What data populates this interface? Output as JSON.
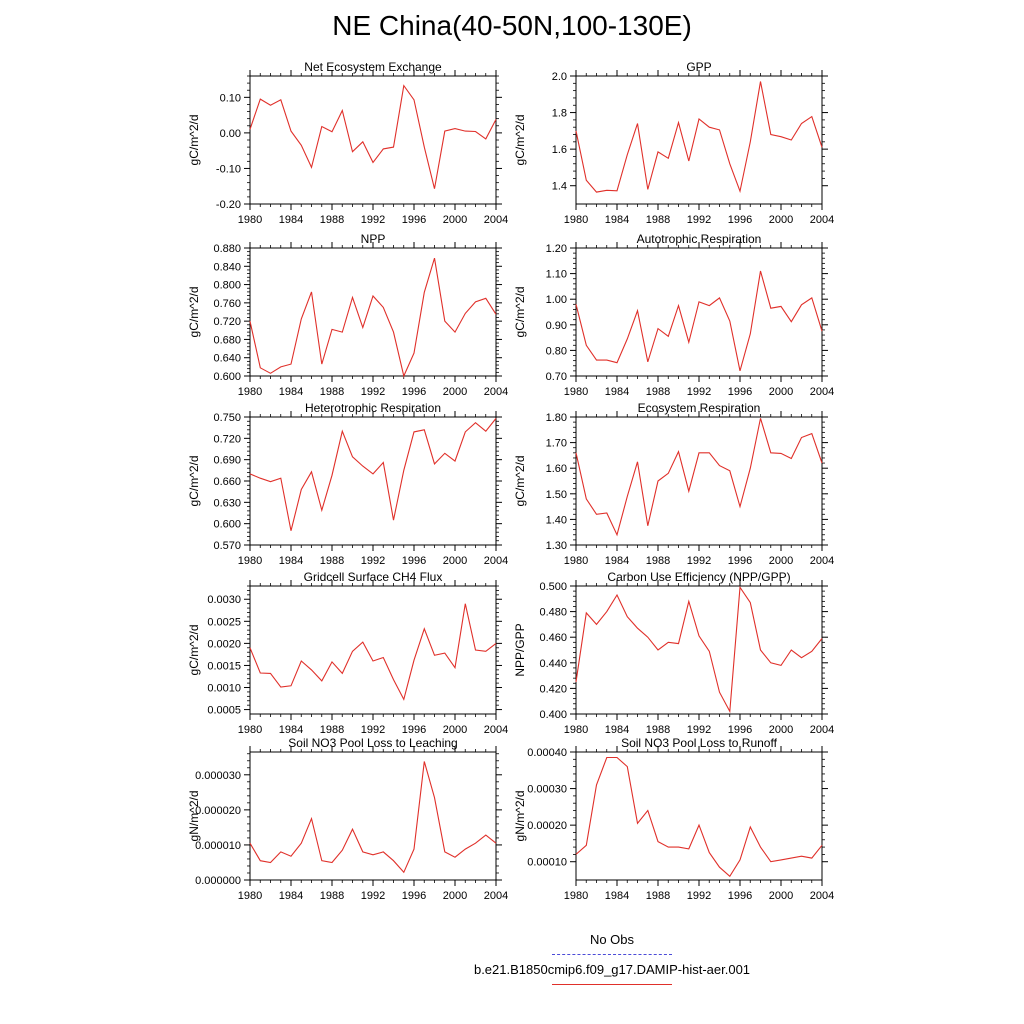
{
  "title": "NE China(40-50N,100-130E)",
  "legend": {
    "obs_label": "No Obs",
    "obs_color": "#4b4bd8",
    "model_label": "b.e21.B1850cmip6.f09_g17.DAMIP-hist-aer.001",
    "model_color": "#e0302a"
  },
  "chart_data": [
    {
      "type": "line",
      "title": "Net Ecosystem Exchange",
      "ylabel": "gC/m^2/d",
      "ylim": [
        -0.2,
        0.16
      ],
      "yticks": [
        -0.2,
        -0.1,
        0.0,
        0.1
      ],
      "ytick_labels": [
        "-0.20",
        "-0.10",
        "0.00",
        "0.10"
      ],
      "xlim": [
        1980,
        2004
      ],
      "xticks": [
        1980,
        1984,
        1988,
        1992,
        1996,
        2000,
        2004
      ],
      "x": [
        1980,
        1981,
        1982,
        1983,
        1984,
        1985,
        1986,
        1987,
        1988,
        1989,
        1990,
        1991,
        1992,
        1993,
        1994,
        1995,
        1996,
        1997,
        1998,
        1999,
        2000,
        2001,
        2002,
        2003,
        2004
      ],
      "series": [
        {
          "values": [
            0.01,
            0.095,
            0.078,
            0.093,
            0.005,
            -0.035,
            -0.097,
            0.018,
            0.003,
            0.063,
            -0.053,
            -0.025,
            -0.083,
            -0.045,
            -0.04,
            0.133,
            0.093,
            -0.04,
            -0.157,
            0.005,
            0.012,
            0.005,
            0.004,
            -0.017,
            0.038
          ]
        }
      ]
    },
    {
      "type": "line",
      "title": "GPP",
      "ylabel": "gC/m^2/d",
      "ylim": [
        1.3,
        2.0
      ],
      "yticks": [
        1.4,
        1.6,
        1.8,
        2.0
      ],
      "ytick_labels": [
        "1.4",
        "1.6",
        "1.8",
        "2.0"
      ],
      "xlim": [
        1980,
        2004
      ],
      "xticks": [
        1980,
        1984,
        1988,
        1992,
        1996,
        2000,
        2004
      ],
      "x": [
        1980,
        1981,
        1982,
        1983,
        1984,
        1985,
        1986,
        1987,
        1988,
        1989,
        1990,
        1991,
        1992,
        1993,
        1994,
        1995,
        1996,
        1997,
        1998,
        1999,
        2000,
        2001,
        2002,
        2003,
        2004
      ],
      "series": [
        {
          "values": [
            1.7,
            1.43,
            1.365,
            1.375,
            1.372,
            1.57,
            1.74,
            1.38,
            1.585,
            1.55,
            1.745,
            1.535,
            1.765,
            1.72,
            1.705,
            1.52,
            1.37,
            1.64,
            1.97,
            1.68,
            1.668,
            1.65,
            1.74,
            1.778,
            1.61
          ]
        }
      ]
    },
    {
      "type": "line",
      "title": "NPP",
      "ylabel": "gC/m^2/d",
      "ylim": [
        0.6,
        0.88
      ],
      "yticks": [
        0.6,
        0.64,
        0.68,
        0.72,
        0.76,
        0.8,
        0.84,
        0.88
      ],
      "ytick_labels": [
        "0.600",
        "0.640",
        "0.680",
        "0.720",
        "0.760",
        "0.800",
        "0.840",
        "0.880"
      ],
      "xlim": [
        1980,
        2004
      ],
      "xticks": [
        1980,
        1984,
        1988,
        1992,
        1996,
        2000,
        2004
      ],
      "x": [
        1980,
        1981,
        1982,
        1983,
        1984,
        1985,
        1986,
        1987,
        1988,
        1989,
        1990,
        1991,
        1992,
        1993,
        1994,
        1995,
        1996,
        1997,
        1998,
        1999,
        2000,
        2001,
        2002,
        2003,
        2004
      ],
      "series": [
        {
          "values": [
            0.72,
            0.618,
            0.606,
            0.62,
            0.626,
            0.725,
            0.784,
            0.626,
            0.702,
            0.696,
            0.772,
            0.706,
            0.775,
            0.75,
            0.696,
            0.6,
            0.65,
            0.783,
            0.858,
            0.72,
            0.696,
            0.737,
            0.762,
            0.77,
            0.735
          ]
        }
      ]
    },
    {
      "type": "line",
      "title": "Autotrophic Respiration",
      "ylabel": "gC/m^2/d",
      "ylim": [
        0.7,
        1.2
      ],
      "yticks": [
        0.7,
        0.8,
        0.9,
        1.0,
        1.1,
        1.2
      ],
      "ytick_labels": [
        "0.70",
        "0.80",
        "0.90",
        "1.00",
        "1.10",
        "1.20"
      ],
      "xlim": [
        1980,
        2004
      ],
      "xticks": [
        1980,
        1984,
        1988,
        1992,
        1996,
        2000,
        2004
      ],
      "x": [
        1980,
        1981,
        1982,
        1983,
        1984,
        1985,
        1986,
        1987,
        1988,
        1989,
        1990,
        1991,
        1992,
        1993,
        1994,
        1995,
        1996,
        1997,
        1998,
        1999,
        2000,
        2001,
        2002,
        2003,
        2004
      ],
      "series": [
        {
          "values": [
            0.98,
            0.82,
            0.762,
            0.762,
            0.752,
            0.845,
            0.955,
            0.755,
            0.885,
            0.855,
            0.975,
            0.832,
            0.99,
            0.975,
            1.005,
            0.915,
            0.72,
            0.865,
            1.11,
            0.965,
            0.972,
            0.912,
            0.978,
            1.005,
            0.875
          ]
        }
      ]
    },
    {
      "type": "line",
      "title": "Heterotrophic Respiration",
      "ylabel": "gC/m^2/d",
      "ylim": [
        0.57,
        0.75
      ],
      "yticks": [
        0.57,
        0.6,
        0.63,
        0.66,
        0.69,
        0.72,
        0.75
      ],
      "ytick_labels": [
        "0.570",
        "0.600",
        "0.630",
        "0.660",
        "0.690",
        "0.720",
        "0.750"
      ],
      "xlim": [
        1980,
        2004
      ],
      "xticks": [
        1980,
        1984,
        1988,
        1992,
        1996,
        2000,
        2004
      ],
      "x": [
        1980,
        1981,
        1982,
        1983,
        1984,
        1985,
        1986,
        1987,
        1988,
        1989,
        1990,
        1991,
        1992,
        1993,
        1994,
        1995,
        1996,
        1997,
        1998,
        1999,
        2000,
        2001,
        2002,
        2003,
        2004
      ],
      "series": [
        {
          "values": [
            0.67,
            0.664,
            0.659,
            0.664,
            0.59,
            0.648,
            0.673,
            0.619,
            0.668,
            0.73,
            0.694,
            0.681,
            0.67,
            0.686,
            0.605,
            0.675,
            0.729,
            0.732,
            0.684,
            0.699,
            0.688,
            0.729,
            0.742,
            0.73,
            0.748
          ]
        }
      ]
    },
    {
      "type": "line",
      "title": "Ecosystem Respiration",
      "ylabel": "gC/m^2/d",
      "ylim": [
        1.3,
        1.8
      ],
      "yticks": [
        1.3,
        1.4,
        1.5,
        1.6,
        1.7,
        1.8
      ],
      "ytick_labels": [
        "1.30",
        "1.40",
        "1.50",
        "1.60",
        "1.70",
        "1.80"
      ],
      "xlim": [
        1980,
        2004
      ],
      "xticks": [
        1980,
        1984,
        1988,
        1992,
        1996,
        2000,
        2004
      ],
      "x": [
        1980,
        1981,
        1982,
        1983,
        1984,
        1985,
        1986,
        1987,
        1988,
        1989,
        1990,
        1991,
        1992,
        1993,
        1994,
        1995,
        1996,
        1997,
        1998,
        1999,
        2000,
        2001,
        2002,
        2003,
        2004
      ],
      "series": [
        {
          "values": [
            1.66,
            1.48,
            1.42,
            1.425,
            1.34,
            1.49,
            1.625,
            1.375,
            1.55,
            1.58,
            1.665,
            1.51,
            1.66,
            1.66,
            1.61,
            1.59,
            1.45,
            1.6,
            1.795,
            1.66,
            1.658,
            1.638,
            1.72,
            1.735,
            1.62
          ]
        }
      ]
    },
    {
      "type": "line",
      "title": "Gridcell Surface CH4 Flux",
      "ylabel": "gC/m^2/d",
      "ylim": [
        0.0004,
        0.0033
      ],
      "yticks": [
        0.0005,
        0.001,
        0.0015,
        0.002,
        0.0025,
        0.003
      ],
      "ytick_labels": [
        "0.0005",
        "0.0010",
        "0.0015",
        "0.0020",
        "0.0025",
        "0.0030"
      ],
      "xlim": [
        1980,
        2004
      ],
      "xticks": [
        1980,
        1984,
        1988,
        1992,
        1996,
        2000,
        2004
      ],
      "x": [
        1980,
        1981,
        1982,
        1983,
        1984,
        1985,
        1986,
        1987,
        1988,
        1989,
        1990,
        1991,
        1992,
        1993,
        1994,
        1995,
        1996,
        1997,
        1998,
        1999,
        2000,
        2001,
        2002,
        2003,
        2004
      ],
      "series": [
        {
          "values": [
            0.0019,
            0.00133,
            0.00132,
            0.00101,
            0.00104,
            0.0016,
            0.0014,
            0.00115,
            0.00158,
            0.00132,
            0.00182,
            0.00203,
            0.0016,
            0.00168,
            0.00118,
            0.00073,
            0.00162,
            0.00233,
            0.00173,
            0.00178,
            0.00145,
            0.0029,
            0.00185,
            0.00182,
            0.002
          ]
        }
      ]
    },
    {
      "type": "line",
      "title": "Carbon Use Efficiency (NPP/GPP)",
      "ylabel": "NPP/GPP",
      "ylim": [
        0.4,
        0.5
      ],
      "yticks": [
        0.4,
        0.42,
        0.44,
        0.46,
        0.48,
        0.5
      ],
      "ytick_labels": [
        "0.400",
        "0.420",
        "0.440",
        "0.460",
        "0.480",
        "0.500"
      ],
      "xlim": [
        1980,
        2004
      ],
      "xticks": [
        1980,
        1984,
        1988,
        1992,
        1996,
        2000,
        2004
      ],
      "x": [
        1980,
        1981,
        1982,
        1983,
        1984,
        1985,
        1986,
        1987,
        1988,
        1989,
        1990,
        1991,
        1992,
        1993,
        1994,
        1995,
        1996,
        1997,
        1998,
        1999,
        2000,
        2001,
        2002,
        2003,
        2004
      ],
      "series": [
        {
          "values": [
            0.425,
            0.479,
            0.47,
            0.48,
            0.493,
            0.476,
            0.467,
            0.46,
            0.45,
            0.456,
            0.455,
            0.488,
            0.461,
            0.449,
            0.417,
            0.402,
            0.499,
            0.487,
            0.45,
            0.44,
            0.438,
            0.45,
            0.444,
            0.449,
            0.459
          ]
        }
      ]
    },
    {
      "type": "line",
      "title": "Soil NO3 Pool Loss to Leaching",
      "ylabel": "gN/m^2/d",
      "ylim": [
        0.0,
        3.65e-05
      ],
      "yticks": [
        0.0,
        1e-05,
        2e-05,
        3e-05
      ],
      "ytick_labels": [
        "0.000000",
        "0.000010",
        "0.000020",
        "0.000030"
      ],
      "xlim": [
        1980,
        2004
      ],
      "xticks": [
        1980,
        1984,
        1988,
        1992,
        1996,
        2000,
        2004
      ],
      "x": [
        1980,
        1981,
        1982,
        1983,
        1984,
        1985,
        1986,
        1987,
        1988,
        1989,
        1990,
        1991,
        1992,
        1993,
        1994,
        1995,
        1996,
        1997,
        1998,
        1999,
        2000,
        2001,
        2002,
        2003,
        2004
      ],
      "series": [
        {
          "values": [
            1.05e-05,
            5.5e-06,
            5e-06,
            8e-06,
            6.8e-06,
            1.05e-05,
            1.75e-05,
            5.5e-06,
            5e-06,
            8.5e-06,
            1.45e-05,
            8e-06,
            7.2e-06,
            8e-06,
            5.5e-06,
            2.2e-06,
            8.8e-06,
            3.38e-05,
            2.35e-05,
            8e-06,
            6.5e-06,
            8.8e-06,
            1.05e-05,
            1.28e-05,
            1.05e-05
          ]
        }
      ]
    },
    {
      "type": "line",
      "title": "Soil NO3 Pool Loss to Runoff",
      "ylabel": "gN/m^2/d",
      "ylim": [
        5e-05,
        0.0004
      ],
      "yticks": [
        0.0001,
        0.0002,
        0.0003,
        0.0004
      ],
      "ytick_labels": [
        "0.00010",
        "0.00020",
        "0.00030",
        "0.00040"
      ],
      "xlim": [
        1980,
        2004
      ],
      "xticks": [
        1980,
        1984,
        1988,
        1992,
        1996,
        2000,
        2004
      ],
      "x": [
        1980,
        1981,
        1982,
        1983,
        1984,
        1985,
        1986,
        1987,
        1988,
        1989,
        1990,
        1991,
        1992,
        1993,
        1994,
        1995,
        1996,
        1997,
        1998,
        1999,
        2000,
        2001,
        2002,
        2003,
        2004
      ],
      "series": [
        {
          "values": [
            0.00012,
            0.000145,
            0.00031,
            0.000385,
            0.000385,
            0.00036,
            0.000205,
            0.00024,
            0.000155,
            0.00014,
            0.00014,
            0.000135,
            0.0002,
            0.000125,
            8.5e-05,
            6e-05,
            0.000105,
            0.000195,
            0.00014,
            0.0001,
            0.000105,
            0.00011,
            0.000115,
            0.00011,
            0.000145
          ]
        }
      ]
    }
  ]
}
